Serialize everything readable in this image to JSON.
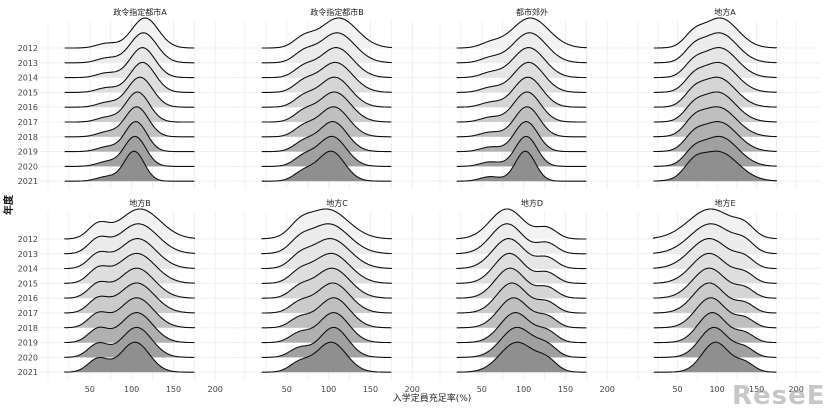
{
  "chart_data": {
    "type": "area",
    "subtype": "ridgeline",
    "ylabel": "年度",
    "xlabel": "入学定員充足率(%)",
    "years": [
      "2012",
      "2013",
      "2014",
      "2015",
      "2016",
      "2017",
      "2018",
      "2019",
      "2020",
      "2021"
    ],
    "x_ticks": [
      50,
      100,
      150,
      200
    ],
    "xlim": [
      0,
      220
    ],
    "grid": true,
    "fills": [
      "#f2f2f2",
      "#ececec",
      "#e6e6e6",
      "#dedede",
      "#d5d5d5",
      "#cbcbcb",
      "#bfbfbf",
      "#b0b0b0",
      "#a0a0a0",
      "#8f8f8f"
    ],
    "panels": [
      {
        "title": "政令指定都市A",
        "xmin": 20,
        "xmax": 175,
        "peaks": [
          116,
          114,
          113,
          113,
          110,
          107,
          106,
          105,
          104,
          103
        ],
        "spread": [
          16,
          16,
          15,
          15,
          15,
          14,
          14,
          13,
          13,
          12
        ],
        "second": [
          [
            70,
            0.15
          ]
        ]
      },
      {
        "title": "政令指定都市B",
        "xmin": 20,
        "xmax": 175,
        "peaks": [
          112,
          110,
          109,
          108,
          107,
          107,
          106,
          105,
          104,
          103
        ],
        "spread": [
          22,
          21,
          20,
          20,
          19,
          19,
          18,
          17,
          17,
          16
        ],
        "second": [
          [
            70,
            0.3
          ]
        ]
      },
      {
        "title": "都市郊外",
        "xmin": 20,
        "xmax": 175,
        "peaks": [
          108,
          107,
          106,
          106,
          105,
          104,
          104,
          103,
          103,
          102
        ],
        "spread": [
          22,
          20,
          19,
          18,
          17,
          16,
          15,
          14,
          13,
          12
        ],
        "second": [
          [
            60,
            0.15
          ]
        ]
      },
      {
        "title": "地方A",
        "xmin": 20,
        "xmax": 175,
        "peaks": [
          104,
          103,
          103,
          102,
          101,
          101,
          101,
          102,
          103,
          101
        ],
        "spread": [
          22,
          22,
          22,
          22,
          22,
          22,
          23,
          23,
          23,
          25
        ],
        "second": [
          [
            70,
            0.35
          ]
        ]
      },
      {
        "title": "地方B",
        "xmin": 20,
        "xmax": 175,
        "peaks": [
          110,
          108,
          107,
          106,
          106,
          106,
          106,
          106,
          106,
          104
        ],
        "spread": [
          24,
          23,
          22,
          22,
          21,
          21,
          20,
          19,
          18,
          17
        ],
        "second": [
          [
            60,
            0.45
          ]
        ]
      },
      {
        "title": "地方C",
        "xmin": 20,
        "xmax": 175,
        "peaks": [
          98,
          100,
          102,
          103,
          104,
          105,
          106,
          106,
          106,
          103
        ],
        "spread": [
          25,
          24,
          23,
          22,
          21,
          20,
          19,
          18,
          17,
          18
        ],
        "second": [
          [
            65,
            0.3
          ]
        ]
      },
      {
        "title": "地方D",
        "xmin": 20,
        "xmax": 175,
        "peaks": [
          80,
          80,
          82,
          83,
          84,
          86,
          88,
          90,
          92,
          92
        ],
        "spread": [
          20,
          19,
          19,
          18,
          18,
          18,
          18,
          18,
          19,
          20
        ],
        "second": [
          [
            128,
            0.35
          ]
        ]
      },
      {
        "title": "地方E",
        "xmin": 20,
        "xmax": 175,
        "peaks": [
          92,
          92,
          90,
          90,
          90,
          90,
          92,
          94,
          96,
          98
        ],
        "spread": [
          28,
          26,
          24,
          22,
          21,
          20,
          19,
          18,
          18,
          17
        ],
        "second": [
          [
            135,
            0.3
          ]
        ]
      }
    ]
  },
  "watermark": "ReseEd"
}
